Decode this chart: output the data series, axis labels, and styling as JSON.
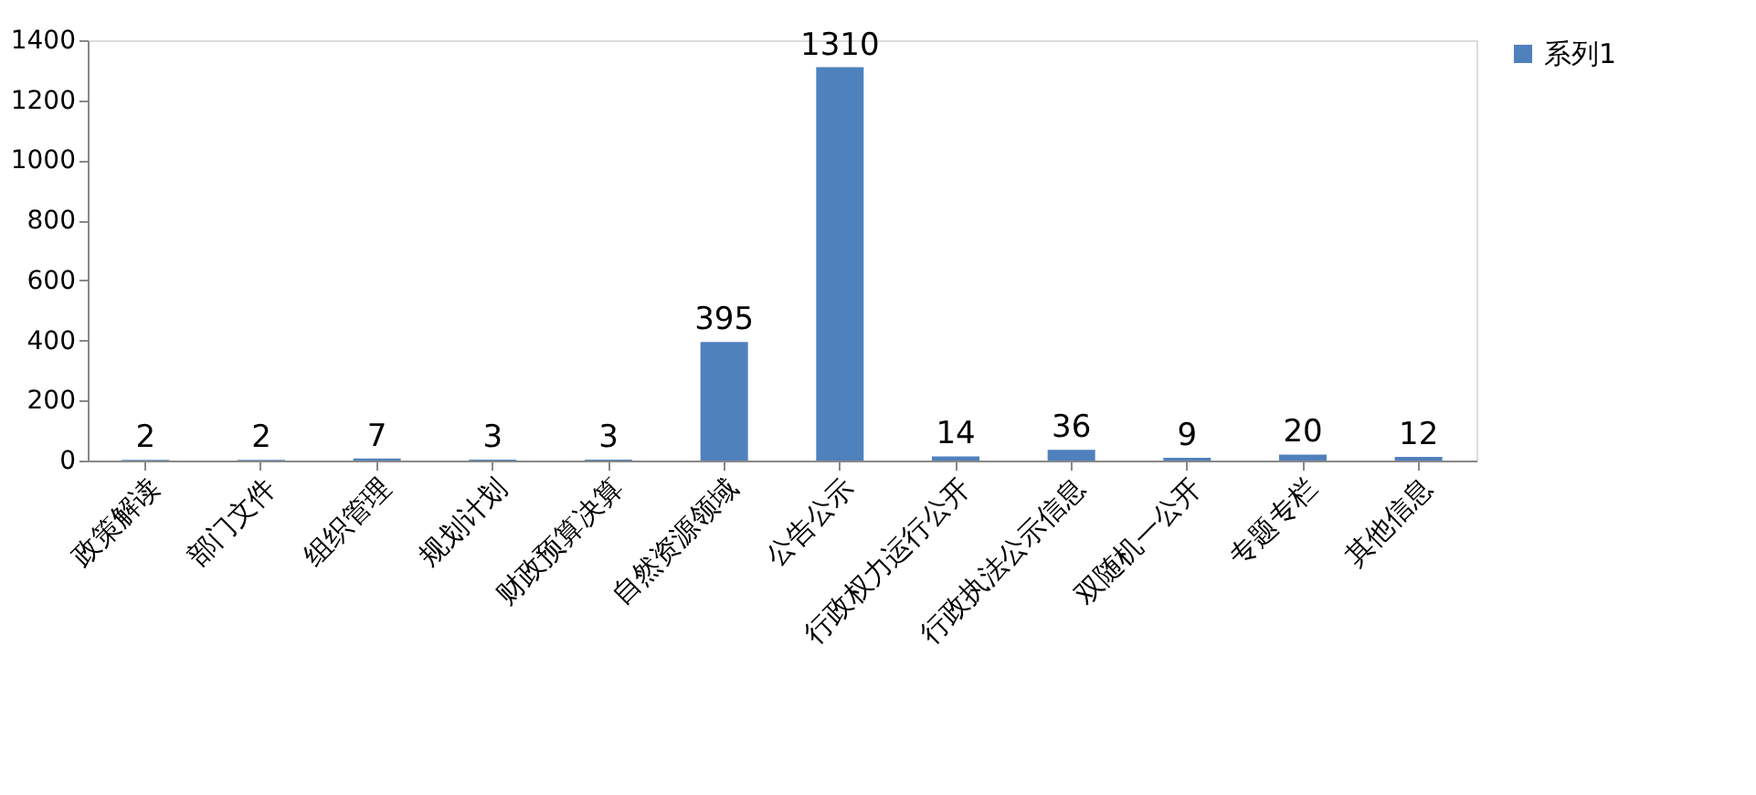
{
  "chart_data": {
    "type": "bar",
    "categories": [
      "政策解读",
      "部门文件",
      "组织管理",
      "规划计划",
      "财政预算决算",
      "自然资源领域",
      "公告公示",
      "行政权力运行公开",
      "行政执法公示信息",
      "双随机一公开",
      "专题专栏",
      "其他信息"
    ],
    "series": [
      {
        "name": "系列1",
        "color": "#4f81bd",
        "values": [
          2,
          2,
          7,
          3,
          3,
          395,
          1310,
          14,
          36,
          9,
          20,
          12
        ]
      }
    ],
    "ylim": [
      0,
      1400
    ],
    "yticks": [
      0,
      200,
      400,
      600,
      800,
      1000,
      1200,
      1400
    ],
    "data_labels": true,
    "grid": false,
    "legend": "right"
  }
}
